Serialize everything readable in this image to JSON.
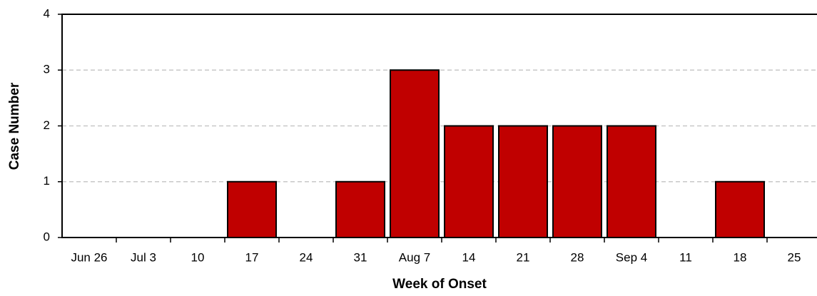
{
  "chart_data": {
    "type": "bar",
    "x_label": "Week of Onset",
    "y_label": "Case Number",
    "categories": [
      "Jun 26",
      "Jul 3",
      "10",
      "17",
      "24",
      "31",
      "Aug 7",
      "14",
      "21",
      "28",
      "Sep 4",
      "11",
      "18",
      "25"
    ],
    "values": [
      0,
      0,
      0,
      1,
      0,
      1,
      3,
      2,
      2,
      2,
      2,
      0,
      1,
      0
    ],
    "color": "#c00000",
    "ylim": [
      0,
      4
    ],
    "yticks": [
      0,
      1,
      2,
      3,
      4
    ],
    "grid": true
  }
}
